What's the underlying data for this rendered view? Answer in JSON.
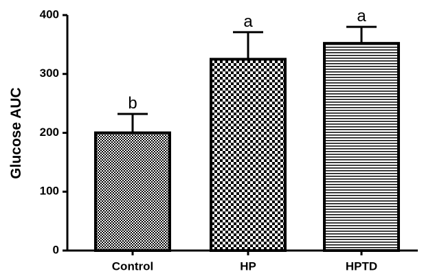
{
  "chart_data": {
    "type": "bar",
    "y_label": "Glucose AUC",
    "categories": [
      "Control",
      "HP",
      "HPTD"
    ],
    "values": [
      200,
      325,
      352
    ],
    "errors": [
      32,
      46,
      28
    ],
    "annotations": [
      "b",
      "a",
      "a"
    ],
    "patterns": [
      "fine-check",
      "check",
      "hlines"
    ],
    "color": "#000000",
    "ylim": [
      0,
      400
    ],
    "yticks": [
      0,
      100,
      200,
      300,
      400
    ],
    "grid": false
  }
}
